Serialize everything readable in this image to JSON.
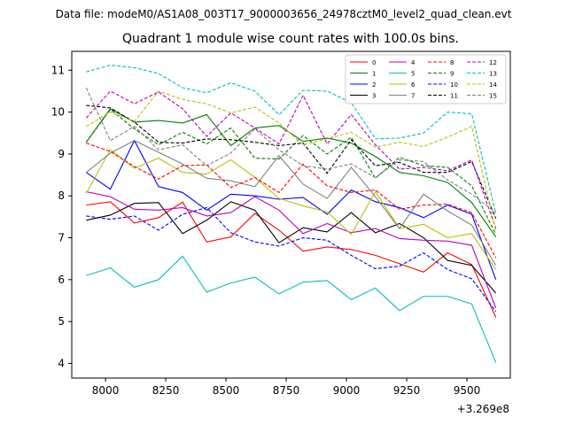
{
  "chart_data": {
    "type": "line",
    "suptitle": "Data file: modeM0/AS1A08_003T17_9000003656_24978cztM0_level2_quad_clean.evt",
    "title": "Quadrant 1 module wise count rates with 100.0s bins.",
    "xlabel": "",
    "ylabel": "",
    "x_offset_label": "+3.269e8",
    "xlim": [
      7860,
      9680
    ],
    "ylim": [
      3.65,
      11.45
    ],
    "xticks": [
      8000,
      8250,
      8500,
      8750,
      9000,
      9250,
      9500
    ],
    "xtick_labels": [
      "8000",
      "8250",
      "8500",
      "8750",
      "9000",
      "9250",
      "9500"
    ],
    "yticks": [
      4,
      5,
      6,
      7,
      8,
      9,
      10,
      11
    ],
    "ytick_labels": [
      "4",
      "5",
      "6",
      "7",
      "8",
      "9",
      "10",
      "11"
    ],
    "grid": false,
    "legend_placement": "top-right",
    "x": [
      7920,
      8020,
      8120,
      8220,
      8320,
      8420,
      8520,
      8620,
      8720,
      8820,
      8920,
      9020,
      9120,
      9220,
      9320,
      9420,
      9520,
      9620
    ],
    "series": [
      {
        "name": "0",
        "color": "#ff0000",
        "dash": "solid",
        "values": [
          7.78,
          7.86,
          7.35,
          7.48,
          7.85,
          6.9,
          7.02,
          7.58,
          7.18,
          6.68,
          6.78,
          6.72,
          6.58,
          6.38,
          6.18,
          6.64,
          6.36,
          5.1
        ]
      },
      {
        "name": "1",
        "color": "#008000",
        "dash": "solid",
        "values": [
          9.28,
          10.08,
          9.76,
          9.8,
          9.74,
          9.94,
          9.2,
          9.62,
          9.68,
          9.3,
          9.38,
          9.26,
          8.94,
          8.56,
          8.48,
          8.32,
          7.84,
          7.02
        ]
      },
      {
        "name": "2",
        "color": "#0000ff",
        "dash": "solid",
        "values": [
          8.56,
          8.16,
          9.32,
          8.22,
          8.08,
          7.66,
          8.04,
          8.0,
          7.92,
          7.96,
          7.56,
          8.14,
          7.86,
          7.72,
          7.48,
          7.78,
          7.56,
          6.0
        ]
      },
      {
        "name": "3",
        "color": "#000000",
        "dash": "solid",
        "values": [
          7.42,
          7.54,
          7.82,
          7.84,
          7.1,
          7.42,
          7.86,
          7.66,
          6.88,
          7.24,
          7.14,
          7.6,
          7.12,
          7.34,
          7.0,
          6.46,
          6.34,
          5.68
        ]
      },
      {
        "name": "4",
        "color": "#bf00bf",
        "dash": "solid",
        "values": [
          8.1,
          7.98,
          7.68,
          7.66,
          7.72,
          7.52,
          7.6,
          7.98,
          7.66,
          7.1,
          7.34,
          7.12,
          7.22,
          6.98,
          6.94,
          6.92,
          6.82,
          5.32
        ]
      },
      {
        "name": "5",
        "color": "#00bfbf",
        "dash": "solid",
        "values": [
          6.1,
          6.28,
          5.82,
          6.0,
          6.56,
          5.7,
          5.92,
          6.06,
          5.66,
          5.94,
          5.98,
          5.52,
          5.8,
          5.26,
          5.6,
          5.6,
          5.42,
          4.02
        ]
      },
      {
        "name": "6",
        "color": "#bfbf00",
        "dash": "solid",
        "values": [
          8.06,
          9.1,
          8.66,
          8.9,
          8.56,
          8.52,
          8.86,
          8.44,
          7.94,
          7.76,
          7.62,
          7.08,
          8.1,
          7.22,
          7.32,
          7.0,
          7.1,
          6.24
        ]
      },
      {
        "name": "7",
        "color": "#808080",
        "dash": "solid",
        "values": [
          8.56,
          9.02,
          9.32,
          9.04,
          8.76,
          8.42,
          8.36,
          8.22,
          8.96,
          8.28,
          7.94,
          8.68,
          7.98,
          7.22,
          8.04,
          7.64,
          7.3,
          6.34
        ]
      },
      {
        "name": "8",
        "color": "#ff0000",
        "dash": "dashed",
        "values": [
          9.26,
          9.06,
          8.7,
          8.4,
          8.72,
          8.74,
          8.2,
          8.44,
          8.08,
          8.76,
          8.24,
          8.08,
          8.14,
          7.68,
          7.78,
          7.8,
          7.6,
          6.52
        ]
      },
      {
        "name": "9",
        "color": "#008000",
        "dash": "dashed",
        "values": [
          9.28,
          10.06,
          9.6,
          9.22,
          9.52,
          9.24,
          9.62,
          8.9,
          8.88,
          9.44,
          9.0,
          9.4,
          8.42,
          8.92,
          8.72,
          8.68,
          8.24,
          7.08
        ]
      },
      {
        "name": "10",
        "color": "#0000ff",
        "dash": "dashed",
        "values": [
          7.52,
          7.44,
          7.52,
          7.18,
          7.56,
          7.72,
          7.12,
          6.9,
          6.8,
          7.0,
          6.94,
          6.58,
          6.26,
          6.32,
          6.64,
          6.24,
          6.02,
          5.24
        ]
      },
      {
        "name": "11",
        "color": "#000000",
        "dash": "dashed",
        "values": [
          10.16,
          10.1,
          9.76,
          9.28,
          9.26,
          9.36,
          9.34,
          9.28,
          9.2,
          9.26,
          8.54,
          9.34,
          8.72,
          8.8,
          8.56,
          8.56,
          8.82,
          7.46
        ]
      },
      {
        "name": "12",
        "color": "#bf00bf",
        "dash": "dashed",
        "values": [
          9.86,
          10.5,
          10.2,
          10.48,
          10.08,
          9.42,
          9.98,
          9.62,
          9.24,
          10.4,
          9.24,
          9.94,
          9.22,
          8.64,
          8.68,
          8.6,
          8.86,
          7.22
        ]
      },
      {
        "name": "13",
        "color": "#00bfbf",
        "dash": "dashed",
        "values": [
          10.96,
          11.12,
          11.06,
          10.92,
          10.58,
          10.46,
          10.7,
          10.5,
          9.94,
          10.52,
          10.5,
          10.22,
          9.36,
          9.38,
          9.5,
          10.0,
          9.96,
          7.58
        ]
      },
      {
        "name": "14",
        "color": "#bfbf00",
        "dash": "dashed",
        "values": [
          9.66,
          10.0,
          9.78,
          10.5,
          10.3,
          10.2,
          9.98,
          10.12,
          9.74,
          9.22,
          9.36,
          9.52,
          9.16,
          9.28,
          9.18,
          9.4,
          9.66,
          7.16
        ]
      },
      {
        "name": "15",
        "color": "#808080",
        "dash": "dashed",
        "values": [
          10.58,
          9.32,
          9.66,
          9.1,
          9.22,
          8.72,
          9.02,
          9.6,
          9.1,
          8.72,
          8.64,
          8.76,
          8.44,
          8.86,
          8.82,
          8.38,
          8.04,
          7.6
        ]
      }
    ]
  }
}
